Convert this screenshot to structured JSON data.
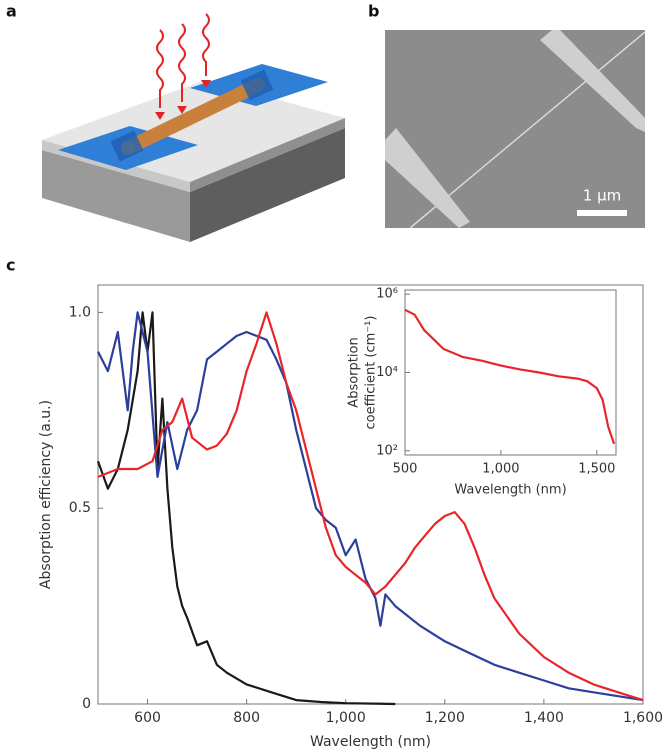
{
  "panels": {
    "labels": [
      "a",
      "b",
      "c"
    ],
    "scale_bar": "1 μm"
  },
  "chart_data": [
    {
      "type": "line",
      "xlabel": "Wavelength (nm)",
      "ylabel": "Absorption efficiency (a.u.)",
      "xlim": [
        500,
        1600
      ],
      "ylim": [
        0,
        1.07
      ],
      "log_y": false,
      "xticks": [
        600,
        800,
        {
          "value": 1000,
          "label": "1,000"
        },
        {
          "value": 1200,
          "label": "1,200"
        },
        {
          "value": 1400,
          "label": "1,400"
        },
        {
          "value": 1600,
          "label": "1,600"
        }
      ],
      "yticks": [
        0,
        0.5,
        {
          "value": 1,
          "label": "1.0"
        }
      ],
      "series": [
        {
          "color": "#1a1a1a",
          "x": [
            500,
            520,
            540,
            560,
            580,
            590,
            600,
            610,
            620,
            630,
            640,
            650,
            660,
            670,
            680,
            700,
            720,
            740,
            760,
            800,
            850,
            900,
            950,
            1000,
            1100
          ],
          "values": [
            0.62,
            0.55,
            0.6,
            0.7,
            0.85,
            1.0,
            0.9,
            1.0,
            0.6,
            0.78,
            0.55,
            0.4,
            0.3,
            0.25,
            0.22,
            0.15,
            0.16,
            0.1,
            0.08,
            0.05,
            0.03,
            0.01,
            0.005,
            0.002,
            0.0
          ]
        },
        {
          "color": "#2b3f9c",
          "x": [
            500,
            520,
            540,
            560,
            570,
            580,
            600,
            620,
            640,
            660,
            680,
            700,
            720,
            740,
            760,
            780,
            800,
            820,
            840,
            860,
            880,
            900,
            920,
            940,
            960,
            980,
            1000,
            1020,
            1040,
            1060,
            1070,
            1080,
            1100,
            1150,
            1200,
            1250,
            1300,
            1350,
            1400,
            1450,
            1500,
            1550,
            1600
          ],
          "values": [
            0.9,
            0.85,
            0.95,
            0.75,
            0.9,
            1.0,
            0.9,
            0.58,
            0.72,
            0.6,
            0.7,
            0.75,
            0.88,
            0.9,
            0.92,
            0.94,
            0.95,
            0.94,
            0.93,
            0.88,
            0.82,
            0.7,
            0.6,
            0.5,
            0.47,
            0.45,
            0.38,
            0.42,
            0.32,
            0.27,
            0.2,
            0.28,
            0.25,
            0.2,
            0.16,
            0.13,
            0.1,
            0.08,
            0.06,
            0.04,
            0.03,
            0.02,
            0.01
          ]
        },
        {
          "color": "#e8262a",
          "x": [
            500,
            540,
            580,
            610,
            630,
            650,
            670,
            690,
            720,
            740,
            760,
            780,
            800,
            820,
            840,
            860,
            880,
            900,
            920,
            940,
            960,
            980,
            1000,
            1020,
            1040,
            1060,
            1080,
            1100,
            1120,
            1140,
            1160,
            1180,
            1200,
            1220,
            1240,
            1260,
            1280,
            1300,
            1350,
            1400,
            1450,
            1500,
            1550,
            1600
          ],
          "values": [
            0.58,
            0.6,
            0.6,
            0.62,
            0.7,
            0.72,
            0.78,
            0.68,
            0.65,
            0.66,
            0.69,
            0.75,
            0.85,
            0.92,
            1.0,
            0.92,
            0.82,
            0.75,
            0.65,
            0.55,
            0.45,
            0.38,
            0.35,
            0.33,
            0.31,
            0.28,
            0.3,
            0.33,
            0.36,
            0.4,
            0.43,
            0.46,
            0.48,
            0.49,
            0.46,
            0.4,
            0.33,
            0.27,
            0.18,
            0.12,
            0.08,
            0.05,
            0.03,
            0.01
          ]
        }
      ]
    },
    {
      "type": "line",
      "xlabel": "Wavelength (nm)",
      "ylabel": [
        "Absorption",
        "coefficient (cm⁻¹)"
      ],
      "xlim": [
        500,
        1600
      ],
      "ylim": [
        78,
        1280000
      ],
      "log_y": true,
      "xticks": [
        500,
        {
          "value": 1000,
          "label": "1,000"
        },
        {
          "value": 1500,
          "label": "1,500"
        }
      ],
      "yticks": [
        {
          "value": 100,
          "label": "10²"
        },
        {
          "value": 10000,
          "label": "10⁴"
        },
        {
          "value": 1000000,
          "label": "10⁶"
        }
      ],
      "series": [
        {
          "color": "#e8262a",
          "x": [
            500,
            550,
            600,
            650,
            700,
            800,
            900,
            1000,
            1100,
            1200,
            1300,
            1400,
            1450,
            1500,
            1530,
            1560,
            1590
          ],
          "values": [
            400000,
            300000,
            120000,
            70000,
            40000,
            25000,
            20000,
            15000,
            12000,
            10000,
            8000,
            7000,
            6000,
            4000,
            2000,
            400,
            150
          ]
        }
      ]
    }
  ]
}
